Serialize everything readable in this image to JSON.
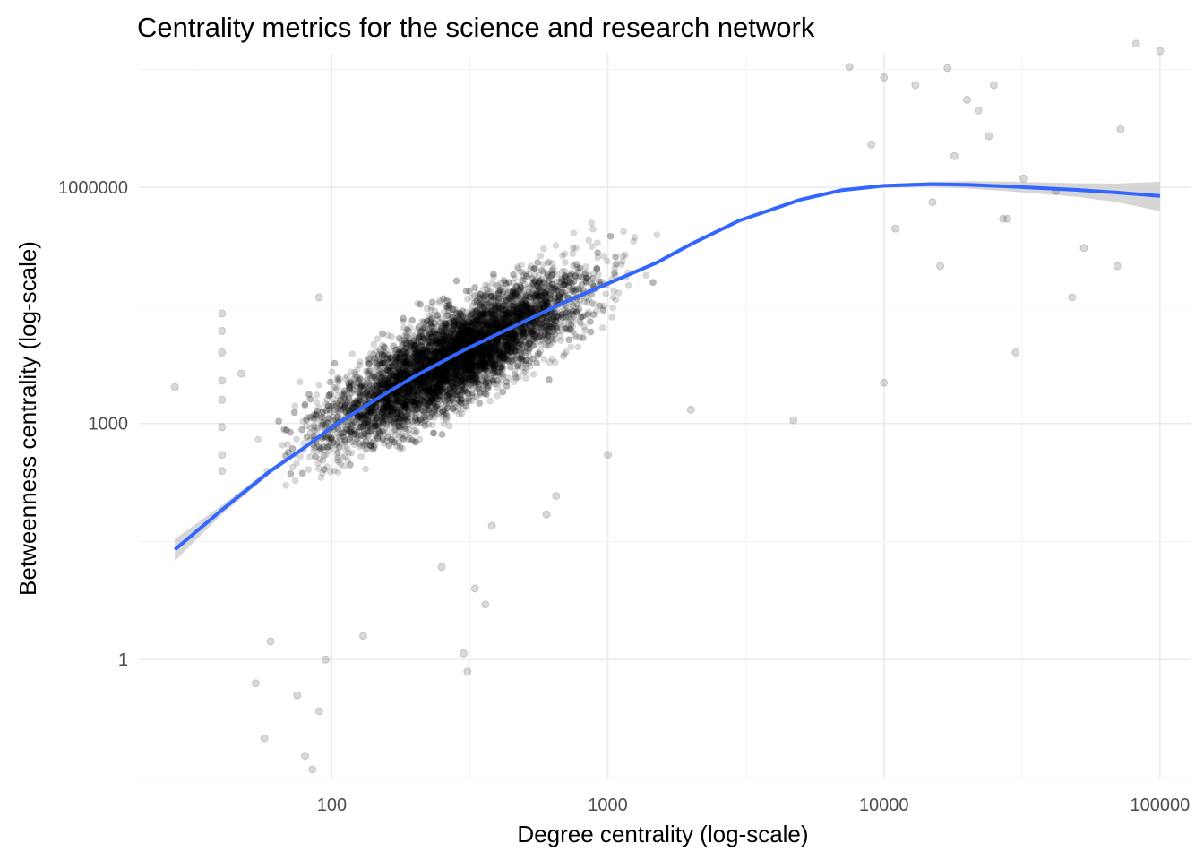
{
  "chart_data": {
    "type": "scatter",
    "title": "Centrality metrics for the science and research network",
    "xlabel": "Degree centrality (log-scale)",
    "ylabel": "Betweenness centrality (log-scale)",
    "x_scale": "log10",
    "y_scale": "log10",
    "xlim": [
      20,
      130000
    ],
    "ylim": [
      0.03,
      50000000
    ],
    "x_ticks": [
      100,
      1000,
      10000,
      100000
    ],
    "x_tick_labels": [
      "100",
      "1000",
      "10000",
      "100000"
    ],
    "y_ticks": [
      1,
      1000,
      1000000
    ],
    "y_tick_labels": [
      "1",
      "1000",
      "1000000"
    ],
    "grid": true,
    "legend": "none",
    "point_color": "#000000",
    "point_alpha": 0.15,
    "smooth_color": "#3366ff",
    "ribbon_color": "#cccccc",
    "points_note_dense_cloud": {
      "x_range": [
        90,
        3000
      ],
      "y_range": [
        300,
        1000000
      ],
      "trend": "y increases roughly with x^1.9"
    },
    "outlier_points": [
      {
        "x": 27,
        "y": 2900
      },
      {
        "x": 40,
        "y": 25000
      },
      {
        "x": 40,
        "y": 15000
      },
      {
        "x": 40,
        "y": 8000
      },
      {
        "x": 40,
        "y": 3500
      },
      {
        "x": 40,
        "y": 2000
      },
      {
        "x": 40,
        "y": 900
      },
      {
        "x": 40,
        "y": 400
      },
      {
        "x": 40,
        "y": 250
      },
      {
        "x": 47,
        "y": 4300
      },
      {
        "x": 53,
        "y": 0.5
      },
      {
        "x": 57,
        "y": 0.1
      },
      {
        "x": 60,
        "y": 1.7
      },
      {
        "x": 75,
        "y": 0.35
      },
      {
        "x": 80,
        "y": 0.06
      },
      {
        "x": 85,
        "y": 0.04
      },
      {
        "x": 90,
        "y": 0.22
      },
      {
        "x": 95,
        "y": 1.0
      },
      {
        "x": 90,
        "y": 40000
      },
      {
        "x": 130,
        "y": 2.0
      },
      {
        "x": 250,
        "y": 15
      },
      {
        "x": 300,
        "y": 1.2
      },
      {
        "x": 310,
        "y": 0.7
      },
      {
        "x": 330,
        "y": 8
      },
      {
        "x": 360,
        "y": 5
      },
      {
        "x": 380,
        "y": 50
      },
      {
        "x": 600,
        "y": 70
      },
      {
        "x": 650,
        "y": 120
      },
      {
        "x": 1000,
        "y": 400
      },
      {
        "x": 2000,
        "y": 1500
      },
      {
        "x": 4700,
        "y": 1100
      },
      {
        "x": 7500,
        "y": 34000000
      },
      {
        "x": 9000,
        "y": 3500000
      },
      {
        "x": 10000,
        "y": 3300
      },
      {
        "x": 10000,
        "y": 25000000
      },
      {
        "x": 11000,
        "y": 300000
      },
      {
        "x": 13000,
        "y": 20000000
      },
      {
        "x": 15000,
        "y": 650000
      },
      {
        "x": 16000,
        "y": 100000
      },
      {
        "x": 17000,
        "y": 33000000
      },
      {
        "x": 18000,
        "y": 2500000
      },
      {
        "x": 20000,
        "y": 13000000
      },
      {
        "x": 22000,
        "y": 9500000
      },
      {
        "x": 24000,
        "y": 4500000
      },
      {
        "x": 25000,
        "y": 20000000
      },
      {
        "x": 27000,
        "y": 400000
      },
      {
        "x": 28000,
        "y": 400000
      },
      {
        "x": 30000,
        "y": 8000
      },
      {
        "x": 32000,
        "y": 1300000
      },
      {
        "x": 42000,
        "y": 900000
      },
      {
        "x": 48000,
        "y": 40000
      },
      {
        "x": 53000,
        "y": 170000
      },
      {
        "x": 70000,
        "y": 100000
      },
      {
        "x": 72000,
        "y": 5500000
      },
      {
        "x": 82000,
        "y": 67000000
      },
      {
        "x": 100000,
        "y": 54000000
      }
    ],
    "series": [
      {
        "type": "smooth",
        "x": [
          27,
          40,
          60,
          80,
          100,
          150,
          200,
          300,
          500,
          700,
          1000,
          1500,
          2000,
          3000,
          5000,
          7000,
          10000,
          15000,
          20000,
          30000,
          50000,
          70000,
          100000
        ],
        "y": [
          25,
          80,
          250,
          500,
          900,
          2200,
          4000,
          8500,
          20000,
          35000,
          60000,
          110000,
          190000,
          380000,
          700000,
          920000,
          1050000,
          1100000,
          1080000,
          1020000,
          930000,
          860000,
          780000
        ],
        "ci_low": [
          18,
          70,
          230,
          470,
          870,
          2130,
          3900,
          8300,
          19500,
          34000,
          58500,
          107000,
          185000,
          372000,
          685000,
          890000,
          1000000,
          1020000,
          970000,
          880000,
          760000,
          650000,
          500000
        ],
        "ci_high": [
          34,
          92,
          270,
          530,
          930,
          2270,
          4100,
          8700,
          20500,
          36000,
          61500,
          113000,
          195000,
          388000,
          715000,
          950000,
          1100000,
          1185000,
          1200000,
          1180000,
          1130000,
          1120000,
          1180000
        ]
      }
    ]
  }
}
